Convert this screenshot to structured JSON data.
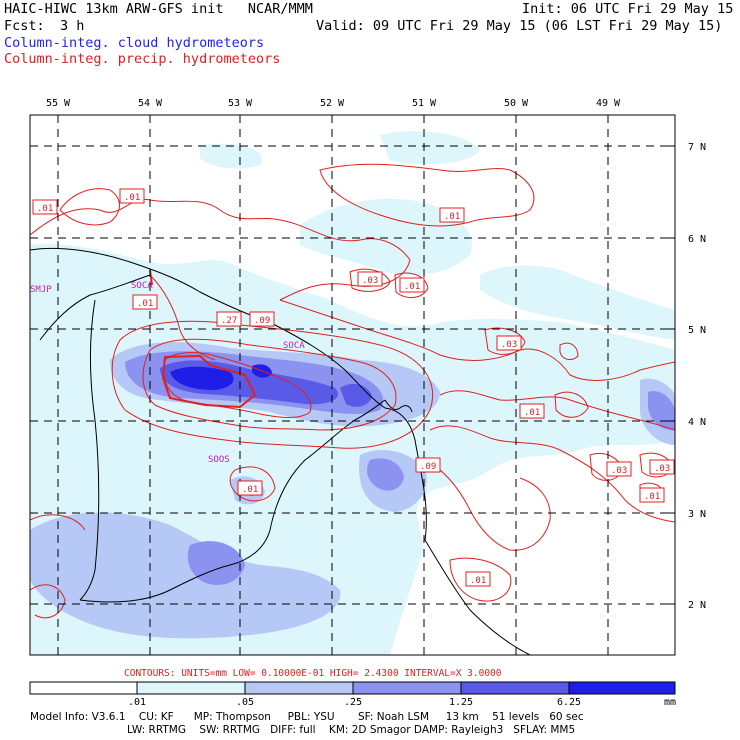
{
  "header": {
    "title_left": "HAIC-HIWC 13km ARW-GFS init   NCAR/MMM",
    "init": "Init: 06 UTC Fri 29 May 15",
    "fcst_label": "Fcst:",
    "fcst_value": "3 h",
    "valid": "Valid: 09 UTC Fri 29 May 15 (06 LST Fri 29 May 15)",
    "field1": "Column-integ. cloud hydrometeors",
    "field2": "Column-integ. precip. hydrometeors"
  },
  "colors": {
    "cloud_text": "#2323e6",
    "precip_text": "#e02020",
    "fill_lev1": "#dcf6fb",
    "fill_lev2": "#b5c8f6",
    "fill_lev3": "#8c92f0",
    "fill_lev4": "#5a5ae8",
    "fill_lev5": "#1e1ee6",
    "contour": "#e02020",
    "station": "#c020c0"
  },
  "axes": {
    "lon_labels": [
      "55 W",
      "54 W",
      "53 W",
      "52 W",
      "51 W",
      "50 W",
      "49 W"
    ],
    "lat_labels": [
      "7 N",
      "6 N",
      "5 N",
      "4 N",
      "3 N",
      "2 N"
    ]
  },
  "stations": [
    "SMJP",
    "SOCA",
    "SOCA",
    "SOOS"
  ],
  "contour_labels": [
    ".01",
    ".01",
    ".01",
    ".01",
    ".27",
    ".09",
    ".03",
    ".01",
    ".03",
    ".01",
    ".09",
    ".01",
    ".01",
    ".03",
    ".03",
    ".01"
  ],
  "contour_info": "CONTOURS:  UNITS=mm  LOW= 0.10000E-01  HIGH=  2.4300     INTERVAL=X  3.0000",
  "colorbar": {
    "ticks": [
      ".01",
      ".05",
      ".25",
      "1.25",
      "6.25"
    ],
    "units": "mm"
  },
  "model_info": {
    "line1": "Model Info: V3.6.1    CU: KF      MP: Thompson     PBL: YSU       SF: Noah LSM     13 km    51 levels   60 sec",
    "line2": "LW: RRTMG    SW: RRTMG   DIFF: full    KM: 2D Smagor DAMP: Rayleigh3   SFLAY: MM5"
  }
}
